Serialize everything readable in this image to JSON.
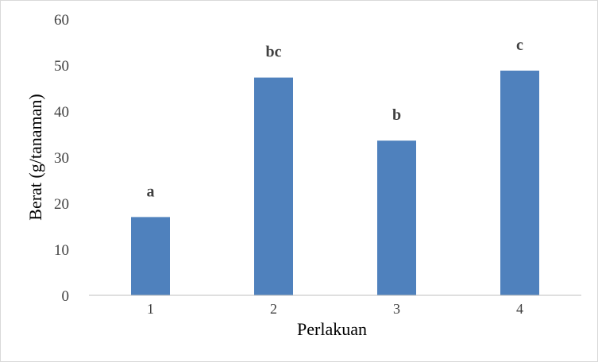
{
  "chart_data": {
    "type": "bar",
    "categories": [
      "1",
      "2",
      "3",
      "4"
    ],
    "values": [
      17,
      47.3,
      33.6,
      48.8
    ],
    "data_labels": [
      "a",
      "bc",
      "b",
      "c"
    ],
    "xlabel": "Perlakuan",
    "ylabel": "Berat (g/tanaman)",
    "ylim": [
      0,
      60
    ],
    "yticks": [
      "0",
      "10",
      "20",
      "30",
      "40",
      "50",
      "60"
    ],
    "grid": false,
    "legend": "none",
    "bar_color": "#4f81bd",
    "axis_color": "#bfbfbf"
  }
}
